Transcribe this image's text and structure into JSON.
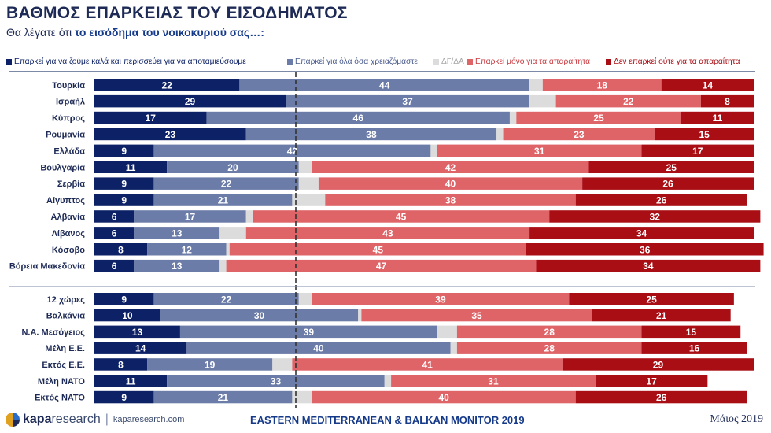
{
  "title": "ΒΑΘΜΟΣ ΕΠΑΡΚΕΙΑΣ ΤΟΥ ΕΙΣΟΔΗΜΑΤΟΣ",
  "subtitle_prefix": "Θα λέγατε ότι ",
  "subtitle_highlight": "το εισόδημα του νοικοκυριού σας…:",
  "colors": {
    "live_well_save": "#0d2266",
    "enough_needs": "#6c7ca8",
    "dk_na": "#dcdcdc",
    "only_essentials": "#de6468",
    "not_even_essentials": "#a80e14"
  },
  "chart_data": {
    "type": "bar",
    "orientation": "horizontal",
    "stacked": true,
    "legend_position": "top",
    "series": [
      {
        "name": "Επαρκεί για να ζούμε καλά και περισσεύει για να αποταμιεύσουμε"
      },
      {
        "name": "Επαρκεί για όλα όσα χρειαζόμαστε"
      },
      {
        "name": "ΔΓ/ΔΑ"
      },
      {
        "name": "Επαρκεί μόνο για τα απαραίτητα"
      },
      {
        "name": "Δεν επαρκεί ούτε για τα απαραίτητα"
      }
    ],
    "groups": [
      {
        "rows": [
          {
            "label": "Τουρκία",
            "values": [
              22,
              44,
              2,
              18,
              14
            ]
          },
          {
            "label": "Ισραήλ",
            "values": [
              29,
              37,
              4,
              22,
              8
            ]
          },
          {
            "label": "Κύπρος",
            "values": [
              17,
              46,
              1,
              25,
              11
            ]
          },
          {
            "label": "Ρουμανία",
            "values": [
              23,
              38,
              1,
              23,
              15
            ]
          },
          {
            "label": "Ελλάδα",
            "values": [
              9,
              42,
              1,
              31,
              17
            ]
          },
          {
            "label": "Βουλγαρία",
            "values": [
              11,
              20,
              2,
              42,
              25
            ]
          },
          {
            "label": "Σερβία",
            "values": [
              9,
              22,
              3,
              40,
              26
            ]
          },
          {
            "label": "Αίγυπτος",
            "values": [
              9,
              21,
              5,
              38,
              26
            ]
          },
          {
            "label": "Αλβανία",
            "values": [
              6,
              17,
              1,
              45,
              32
            ]
          },
          {
            "label": "Λίβανος",
            "values": [
              6,
              13,
              4,
              43,
              34
            ]
          },
          {
            "label": "Κόσοβο",
            "values": [
              8,
              12,
              0.5,
              45,
              36
            ]
          },
          {
            "label": "Βόρεια Μακεδονία",
            "values": [
              6,
              13,
              1,
              47,
              34
            ]
          }
        ]
      },
      {
        "rows": [
          {
            "label": "12 χώρες",
            "values": [
              9,
              22,
              2,
              39,
              25
            ]
          },
          {
            "label": "Βαλκάνια",
            "values": [
              10,
              30,
              0.5,
              35,
              21
            ]
          },
          {
            "label": "Ν.Α. Μεσόγειος",
            "values": [
              13,
              39,
              3,
              28,
              15
            ]
          },
          {
            "label": "Μέλη Ε.Ε.",
            "values": [
              14,
              40,
              1,
              28,
              16
            ]
          },
          {
            "label": "Εκτός Ε.Ε.",
            "values": [
              8,
              19,
              3,
              41,
              29
            ]
          },
          {
            "label": "Μέλη ΝΑΤΟ",
            "values": [
              11,
              33,
              1,
              31,
              17
            ]
          },
          {
            "label": "Εκτός ΝΑΤΟ",
            "values": [
              9,
              21,
              3,
              40,
              26
            ]
          }
        ]
      }
    ]
  },
  "footer": {
    "brand": "kapa",
    "brand_suffix": "research",
    "url": "kaparesearch.com",
    "survey": "EASTERN MEDITERRANEAN & BALKAN MONITOR 2019",
    "date": "Μάιος 2019"
  }
}
